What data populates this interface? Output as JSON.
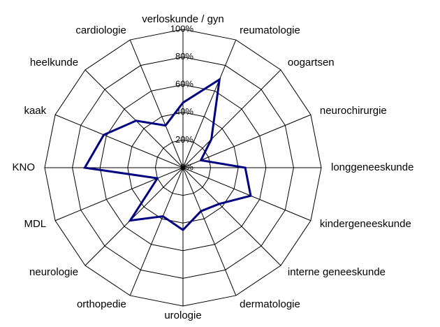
{
  "chart_data": {
    "type": "radar",
    "categories": [
      "verloskunde / gyn",
      "reumatologie",
      "oogartsen",
      "neurochirurgie",
      "longgeneeskunde",
      "kindergeneeskunde",
      "interne geneeskunde",
      "dermatologie",
      "urologie",
      "orthopedie",
      "neurologie",
      "MDL",
      "KNO",
      "kaak",
      "heelkunde",
      "cardiologie"
    ],
    "values": [
      47,
      69,
      29,
      14,
      45,
      53,
      37,
      34,
      45,
      38,
      54,
      20,
      71,
      62,
      48,
      33
    ],
    "color": "#000080",
    "ylim": [
      0,
      100
    ],
    "yticks": [
      {
        "value": 0,
        "label": "0%"
      },
      {
        "value": 20,
        "label": "20%"
      },
      {
        "value": 40,
        "label": "40%"
      },
      {
        "value": 60,
        "label": "60%"
      },
      {
        "value": 80,
        "label": "80%"
      },
      {
        "value": 100,
        "label": "100%"
      }
    ],
    "grid": true
  }
}
